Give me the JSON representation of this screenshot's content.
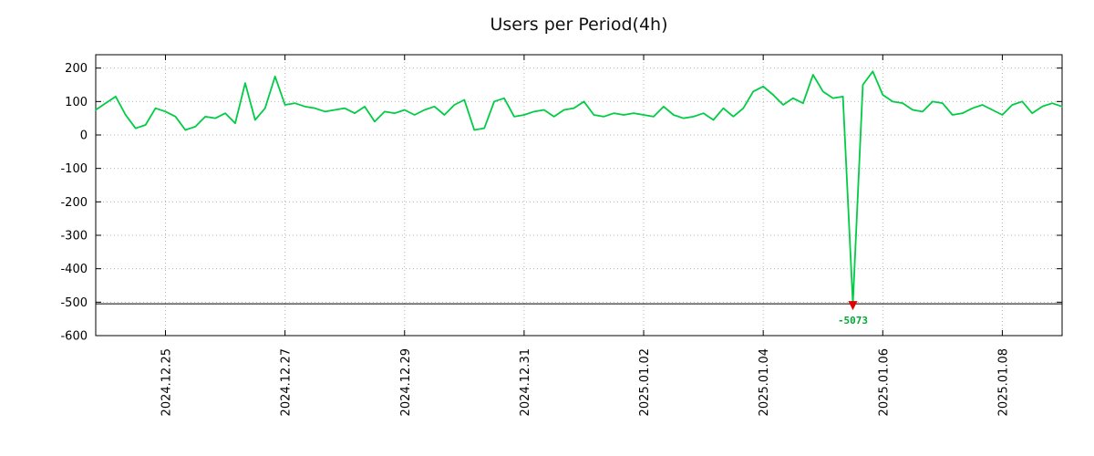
{
  "chart_data": {
    "type": "line",
    "title": "Users per Period(4h)",
    "x_start": "2024-12-23 20:00",
    "x_step_hours": 4,
    "x_ticks": [
      {
        "index": 7,
        "label": "2024.12.25"
      },
      {
        "index": 19,
        "label": "2024.12.27"
      },
      {
        "index": 31,
        "label": "2024.12.29"
      },
      {
        "index": 43,
        "label": "2024.12.31"
      },
      {
        "index": 55,
        "label": "2025.01.02"
      },
      {
        "index": 67,
        "label": "2025.01.04"
      },
      {
        "index": 79,
        "label": "2025.01.06"
      },
      {
        "index": 91,
        "label": "2025.01.08"
      }
    ],
    "y_ticks": [
      200,
      100,
      0,
      -100,
      -200,
      -300,
      -400,
      -500,
      -600
    ],
    "ylim": [
      -600,
      240
    ],
    "grid": true,
    "grid_color": "#b4b4b4",
    "background": "#ffffff",
    "series": [
      {
        "name": "users",
        "color": "#00cc44",
        "values": [
          75,
          95,
          115,
          60,
          20,
          30,
          80,
          70,
          55,
          15,
          25,
          55,
          50,
          65,
          35,
          155,
          45,
          80,
          175,
          90,
          95,
          85,
          80,
          70,
          75,
          80,
          65,
          85,
          40,
          70,
          65,
          75,
          60,
          75,
          85,
          60,
          90,
          105,
          15,
          20,
          100,
          110,
          55,
          60,
          70,
          75,
          55,
          75,
          80,
          100,
          60,
          55,
          65,
          60,
          65,
          60,
          55,
          85,
          60,
          50,
          55,
          65,
          45,
          80,
          55,
          80,
          130,
          145,
          120,
          90,
          110,
          95,
          180,
          130,
          110,
          115,
          -5073,
          150,
          190,
          120,
          100,
          95,
          75,
          70,
          100,
          95,
          60,
          65,
          80,
          90,
          75,
          60,
          90,
          100,
          65,
          85,
          95,
          85
        ]
      }
    ],
    "clip_min": -505,
    "min_marker": {
      "index": 76,
      "value": -5073,
      "label": "-5073",
      "label_color": "#00a838",
      "marker_color": "#dd0000",
      "line_color": "#000000"
    }
  }
}
